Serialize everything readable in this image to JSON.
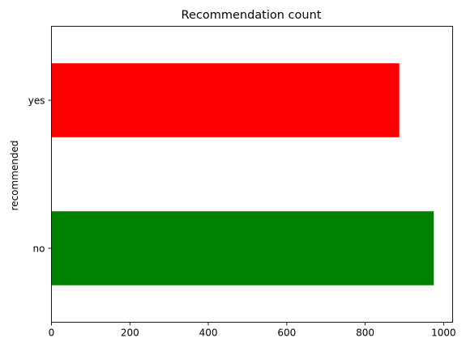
{
  "chart_data": {
    "type": "bar",
    "orientation": "horizontal",
    "title": "Recommendation count",
    "xlabel": "",
    "ylabel": "recommended",
    "categories": [
      "no",
      "yes"
    ],
    "values": [
      975,
      887
    ],
    "colors": [
      "#008000",
      "#ff0000"
    ],
    "xlim": [
      0,
      1023
    ],
    "xticks": [
      0,
      200,
      400,
      600,
      800,
      1000
    ],
    "xtick_labels": [
      "0",
      "200",
      "400",
      "600",
      "800",
      "1000"
    ],
    "grid": false,
    "legend": "none"
  }
}
